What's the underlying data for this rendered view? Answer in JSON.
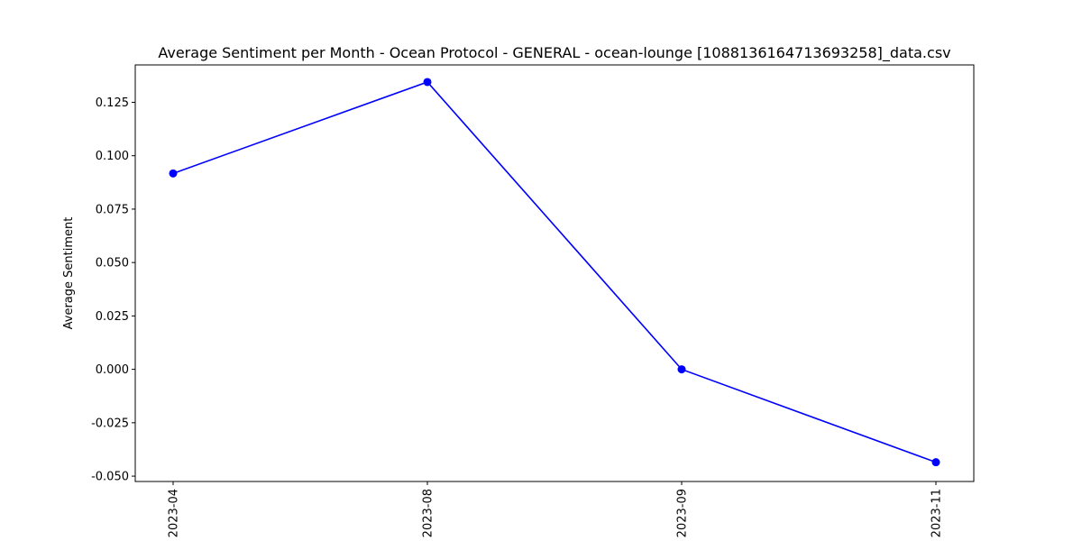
{
  "chart_data": {
    "type": "line",
    "title": "Average Sentiment per Month - Ocean Protocol - GENERAL - ocean-lounge [1088136164713693258]_data.csv",
    "xlabel": "",
    "ylabel": "Average Sentiment",
    "categories": [
      "2023-04",
      "2023-08",
      "2023-09",
      "2023-11"
    ],
    "series": [
      {
        "values": [
          0.0917,
          0.1345,
          0.0,
          -0.0435
        ]
      }
    ],
    "ylim": [
      -0.0525,
      0.1425
    ],
    "yticks": [
      "-0.050",
      "-0.025",
      "0.000",
      "0.025",
      "0.050",
      "0.075",
      "0.100",
      "0.125"
    ],
    "x_tick_rotation": "vertical",
    "grid": false,
    "legend": false,
    "line_color": "#0000ff",
    "marker": "circle"
  }
}
